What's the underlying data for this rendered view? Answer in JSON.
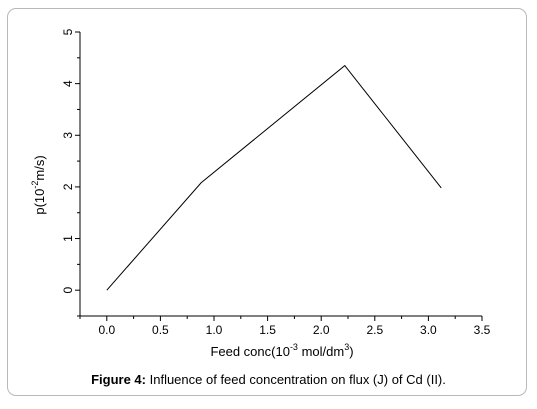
{
  "chart_data": {
    "type": "line",
    "x": [
      0.0,
      0.88,
      2.22,
      3.12
    ],
    "series": [
      {
        "values": [
          0.0,
          2.08,
          4.35,
          1.98
        ]
      }
    ],
    "xlabel_parts": {
      "pre": "Feed conc(10",
      "sup1": "-3",
      "mid": " mol/dm",
      "sup2": "3",
      "post": ")"
    },
    "ylabel_parts": {
      "pre": "p(10",
      "sup": "-2",
      "post": "m/s)"
    },
    "xlim": [
      -0.25,
      3.5
    ],
    "ylim": [
      -0.5,
      5.0
    ],
    "xticks": [
      "0.0",
      "0.5",
      "1.0",
      "1.5",
      "2.0",
      "2.5",
      "3.0",
      "3.5"
    ],
    "yticks": [
      "0",
      "1",
      "2",
      "3",
      "4",
      "5"
    ],
    "grid": false,
    "line_color": "#000000"
  },
  "caption": {
    "label": "Figure 4:",
    "text": " Influence of feed concentration on flux (J) of Cd (II)."
  }
}
